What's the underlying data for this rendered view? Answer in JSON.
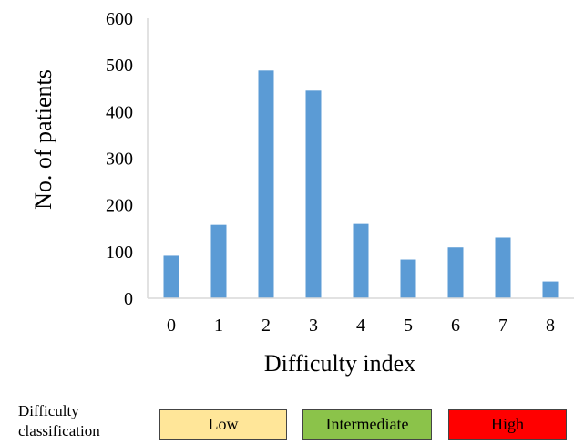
{
  "chart_data": {
    "type": "bar",
    "categories": [
      "0",
      "1",
      "2",
      "3",
      "4",
      "5",
      "6",
      "7",
      "8"
    ],
    "values": [
      91,
      157,
      488,
      445,
      159,
      83,
      109,
      130,
      36
    ],
    "xlabel": "Difficulty index",
    "ylabel": "No. of patients",
    "ylim": [
      0,
      600
    ],
    "yticks": [
      "0",
      "100",
      "200",
      "300",
      "400",
      "500",
      "600"
    ],
    "bar_color": "#5B9BD5",
    "grid": false,
    "legend": "none"
  },
  "classification": {
    "title_line1": "Difficulty",
    "title_line2": "classification",
    "items": [
      {
        "label": "Low",
        "color": "#FFE699"
      },
      {
        "label": "Intermediate",
        "color": "#8BC34A"
      },
      {
        "label": "High",
        "color": "#FF0000"
      }
    ]
  }
}
